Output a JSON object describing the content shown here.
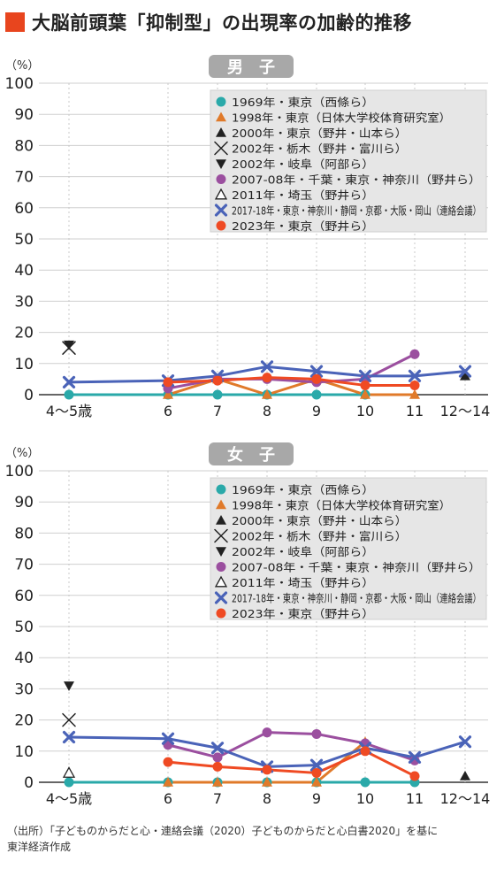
{
  "title": "大脳前頭葉「抑制型」の出現率の加齢的推移",
  "source_lines": [
    "（出所）「子どものからだと心・連絡会議（2020）子どものからだと心白書2020」を基に",
    "東洋経済作成"
  ],
  "chart_data": [
    {
      "type": "line",
      "title": "男　子",
      "ylabel": "（%）",
      "ylim": [
        0,
        100
      ],
      "yticks": [
        0,
        10,
        20,
        30,
        40,
        50,
        60,
        70,
        80,
        90,
        100
      ],
      "categories": [
        "4〜5歳",
        "6",
        "7",
        "8",
        "9",
        "10",
        "11",
        "12〜14"
      ],
      "grid": true,
      "legend_position": "top-right",
      "series": [
        {
          "name": "1969年・東京（西條ら）",
          "marker": "circle",
          "color": "#2aa9a9",
          "line": true,
          "values": [
            0,
            0,
            0,
            0,
            0,
            0,
            null,
            null
          ]
        },
        {
          "name": "1998年・東京（日体大学校体育研究室）",
          "marker": "triangle-up",
          "color": "#e07a2a",
          "line": true,
          "values": [
            null,
            0,
            5,
            0,
            5,
            0,
            0,
            null
          ]
        },
        {
          "name": "2000年・東京（野井・山本ら）",
          "marker": "triangle-up",
          "color": "#222222",
          "line": false,
          "values": [
            null,
            null,
            null,
            null,
            null,
            null,
            null,
            6
          ]
        },
        {
          "name": "2002年・栃木（野井・富川ら）",
          "marker": "x-thin",
          "color": "#222222",
          "line": false,
          "values": [
            15,
            null,
            null,
            null,
            null,
            null,
            null,
            null
          ]
        },
        {
          "name": "2002年・岐阜（阿部ら）",
          "marker": "triangle-down",
          "color": "#222222",
          "line": false,
          "values": [
            16,
            null,
            null,
            null,
            null,
            null,
            null,
            null
          ]
        },
        {
          "name": "2007-08年・千葉・東京・神奈川（野井ら）",
          "marker": "circle",
          "color": "#9b4f9f",
          "line": true,
          "values": [
            null,
            2,
            5,
            5,
            4,
            5,
            13,
            null
          ]
        },
        {
          "name": "2011年・埼玉（野井ら）",
          "marker": "triangle-open",
          "color": "#222222",
          "line": false,
          "values": [
            null,
            null,
            null,
            null,
            null,
            null,
            null,
            null
          ]
        },
        {
          "name": "2017-18年・東京・神奈川・静岡・京都・大阪・岡山（連絡会議）",
          "marker": "x-bold",
          "color": "#4a63b8",
          "line": true,
          "values": [
            4,
            4.5,
            6,
            9,
            7.5,
            6,
            6,
            7.5
          ]
        },
        {
          "name": "2023年・東京（野井ら）",
          "marker": "circle",
          "color": "#ef4a23",
          "line": true,
          "values": [
            null,
            4,
            4.5,
            5.5,
            5,
            3,
            3,
            null
          ]
        }
      ]
    },
    {
      "type": "line",
      "title": "女　子",
      "ylabel": "（%）",
      "ylim": [
        0,
        100
      ],
      "yticks": [
        0,
        10,
        20,
        30,
        40,
        50,
        60,
        70,
        80,
        90,
        100
      ],
      "categories": [
        "4〜5歳",
        "6",
        "7",
        "8",
        "9",
        "10",
        "11",
        "12〜14"
      ],
      "grid": true,
      "legend_position": "top-right",
      "series": [
        {
          "name": "1969年・東京（西條ら）",
          "marker": "circle",
          "color": "#2aa9a9",
          "line": true,
          "values": [
            0,
            0,
            0,
            0,
            0,
            0,
            0,
            null
          ]
        },
        {
          "name": "1998年・東京（日体大学校体育研究室）",
          "marker": "triangle-up",
          "color": "#e07a2a",
          "line": true,
          "values": [
            null,
            0,
            0,
            0,
            0,
            13,
            null,
            null
          ]
        },
        {
          "name": "2000年・東京（野井・山本ら）",
          "marker": "triangle-up",
          "color": "#222222",
          "line": false,
          "values": [
            null,
            null,
            null,
            null,
            null,
            null,
            null,
            2
          ]
        },
        {
          "name": "2002年・栃木（野井・富川ら）",
          "marker": "x-thin",
          "color": "#222222",
          "line": false,
          "values": [
            20,
            null,
            null,
            null,
            null,
            null,
            null,
            null
          ]
        },
        {
          "name": "2002年・岐阜（阿部ら）",
          "marker": "triangle-down",
          "color": "#222222",
          "line": false,
          "values": [
            31,
            null,
            null,
            null,
            null,
            null,
            null,
            null
          ]
        },
        {
          "name": "2007-08年・千葉・東京・神奈川（野井ら）",
          "marker": "circle",
          "color": "#9b4f9f",
          "line": true,
          "values": [
            null,
            12,
            8,
            16,
            15.5,
            12.5,
            7,
            null
          ]
        },
        {
          "name": "2011年・埼玉（野井ら）",
          "marker": "triangle-open",
          "color": "#222222",
          "line": false,
          "values": [
            3,
            null,
            null,
            null,
            null,
            null,
            null,
            null
          ]
        },
        {
          "name": "2017-18年・東京・神奈川・静岡・京都・大阪・岡山（連絡会議）",
          "marker": "x-bold",
          "color": "#4a63b8",
          "line": true,
          "values": [
            14.5,
            14,
            11,
            5,
            5.5,
            11,
            8,
            13
          ]
        },
        {
          "name": "2023年・東京（野井ら）",
          "marker": "circle",
          "color": "#ef4a23",
          "line": true,
          "values": [
            null,
            6.5,
            5,
            4,
            3,
            10,
            2,
            null
          ]
        }
      ]
    }
  ]
}
